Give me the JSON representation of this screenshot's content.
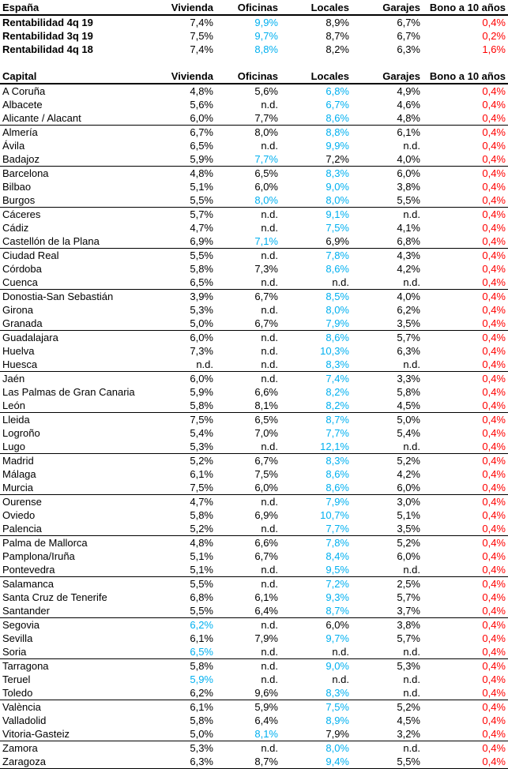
{
  "colors": {
    "highlight": "#00B0F0",
    "negative": "#FF0000",
    "text": "#000000",
    "background": "#FFFFFF",
    "border": "#000000"
  },
  "chart_data": {
    "type": "table",
    "sections": [
      {
        "id": "summary",
        "row_header": "España",
        "columns": [
          "Vivienda",
          "Oficinas",
          "Locales",
          "Garajes",
          "Bono a 10 años"
        ],
        "rows": [
          {
            "label": "Rentabilidad 4q 19",
            "values": [
              "7,4%",
              "9,9%",
              "8,9%",
              "6,7%",
              "0,4%"
            ],
            "hl": [
              1
            ]
          },
          {
            "label": "Rentabilidad 3q 19",
            "values": [
              "7,5%",
              "9,7%",
              "8,7%",
              "6,7%",
              "0,2%"
            ],
            "hl": [
              1
            ]
          },
          {
            "label": "Rentabilidad 4q 18",
            "values": [
              "7,4%",
              "8,8%",
              "8,2%",
              "6,3%",
              "1,6%"
            ],
            "hl": [
              1
            ]
          }
        ]
      },
      {
        "id": "capitals",
        "row_header": "Capital",
        "columns": [
          "Vivienda",
          "Oficinas",
          "Locales",
          "Garajes",
          "Bono a 10 años"
        ],
        "rows": [
          {
            "label": "A Coruña",
            "values": [
              "4,8%",
              "5,6%",
              "6,8%",
              "4,9%",
              "0,4%"
            ],
            "hl": [
              2
            ]
          },
          {
            "label": "Albacete",
            "values": [
              "5,6%",
              "n.d.",
              "6,7%",
              "4,6%",
              "0,4%"
            ],
            "hl": [
              2
            ]
          },
          {
            "label": "Alicante / Alacant",
            "values": [
              "6,0%",
              "7,7%",
              "8,6%",
              "4,8%",
              "0,4%"
            ],
            "hl": [
              2
            ]
          },
          {
            "label": "Almería",
            "values": [
              "6,7%",
              "8,0%",
              "8,8%",
              "6,1%",
              "0,4%"
            ],
            "hl": [
              2
            ]
          },
          {
            "label": "Ávila",
            "values": [
              "6,5%",
              "n.d.",
              "9,9%",
              "n.d.",
              "0,4%"
            ],
            "hl": [
              2
            ]
          },
          {
            "label": "Badajoz",
            "values": [
              "5,9%",
              "7,7%",
              "7,2%",
              "4,0%",
              "0,4%"
            ],
            "hl": [
              1
            ]
          },
          {
            "label": "Barcelona",
            "values": [
              "4,8%",
              "6,5%",
              "8,3%",
              "6,0%",
              "0,4%"
            ],
            "hl": [
              2
            ]
          },
          {
            "label": "Bilbao",
            "values": [
              "5,1%",
              "6,0%",
              "9,0%",
              "3,8%",
              "0,4%"
            ],
            "hl": [
              2
            ]
          },
          {
            "label": "Burgos",
            "values": [
              "5,5%",
              "8,0%",
              "8,0%",
              "5,5%",
              "0,4%"
            ],
            "hl": [
              1,
              2
            ]
          },
          {
            "label": "Cáceres",
            "values": [
              "5,7%",
              "n.d.",
              "9,1%",
              "n.d.",
              "0,4%"
            ],
            "hl": [
              2
            ]
          },
          {
            "label": "Cádiz",
            "values": [
              "4,7%",
              "n.d.",
              "7,5%",
              "4,1%",
              "0,4%"
            ],
            "hl": [
              2
            ]
          },
          {
            "label": "Castellón de la Plana",
            "values": [
              "6,9%",
              "7,1%",
              "6,9%",
              "6,8%",
              "0,4%"
            ],
            "hl": [
              1
            ]
          },
          {
            "label": "Ciudad Real",
            "values": [
              "5,5%",
              "n.d.",
              "7,8%",
              "4,3%",
              "0,4%"
            ],
            "hl": [
              2
            ]
          },
          {
            "label": "Córdoba",
            "values": [
              "5,8%",
              "7,3%",
              "8,6%",
              "4,2%",
              "0,4%"
            ],
            "hl": [
              2
            ]
          },
          {
            "label": "Cuenca",
            "values": [
              "6,5%",
              "n.d.",
              "n.d.",
              "n.d.",
              "0,4%"
            ],
            "hl": []
          },
          {
            "label": "Donostia-San Sebastián",
            "values": [
              "3,9%",
              "6,7%",
              "8,5%",
              "4,0%",
              "0,4%"
            ],
            "hl": [
              2
            ]
          },
          {
            "label": "Girona",
            "values": [
              "5,3%",
              "n.d.",
              "8,0%",
              "6,2%",
              "0,4%"
            ],
            "hl": [
              2
            ]
          },
          {
            "label": "Granada",
            "values": [
              "5,0%",
              "6,7%",
              "7,9%",
              "3,5%",
              "0,4%"
            ],
            "hl": [
              2
            ]
          },
          {
            "label": "Guadalajara",
            "values": [
              "6,0%",
              "n.d.",
              "8,6%",
              "5,7%",
              "0,4%"
            ],
            "hl": [
              2
            ]
          },
          {
            "label": "Huelva",
            "values": [
              "7,3%",
              "n.d.",
              "10,3%",
              "6,3%",
              "0,4%"
            ],
            "hl": [
              2
            ]
          },
          {
            "label": "Huesca",
            "values": [
              "n.d.",
              "n.d.",
              "8,3%",
              "n.d.",
              "0,4%"
            ],
            "hl": [
              2
            ]
          },
          {
            "label": "Jaén",
            "values": [
              "6,0%",
              "n.d.",
              "7,4%",
              "3,3%",
              "0,4%"
            ],
            "hl": [
              2
            ]
          },
          {
            "label": "Las Palmas de Gran Canaria",
            "values": [
              "5,9%",
              "6,6%",
              "8,2%",
              "5,8%",
              "0,4%"
            ],
            "hl": [
              2
            ]
          },
          {
            "label": "León",
            "values": [
              "5,8%",
              "8,1%",
              "8,2%",
              "4,5%",
              "0,4%"
            ],
            "hl": [
              2
            ]
          },
          {
            "label": "Lleida",
            "values": [
              "7,5%",
              "6,5%",
              "8,7%",
              "5,0%",
              "0,4%"
            ],
            "hl": [
              2
            ]
          },
          {
            "label": "Logroño",
            "values": [
              "5,4%",
              "7,0%",
              "7,7%",
              "5,4%",
              "0,4%"
            ],
            "hl": [
              2
            ]
          },
          {
            "label": "Lugo",
            "values": [
              "5,3%",
              "n.d.",
              "12,1%",
              "n.d.",
              "0,4%"
            ],
            "hl": [
              2
            ]
          },
          {
            "label": "Madrid",
            "values": [
              "5,2%",
              "6,7%",
              "8,3%",
              "5,2%",
              "0,4%"
            ],
            "hl": [
              2
            ]
          },
          {
            "label": "Málaga",
            "values": [
              "6,1%",
              "7,5%",
              "8,6%",
              "4,2%",
              "0,4%"
            ],
            "hl": [
              2
            ]
          },
          {
            "label": "Murcia",
            "values": [
              "7,5%",
              "6,0%",
              "8,6%",
              "6,0%",
              "0,4%"
            ],
            "hl": [
              2
            ]
          },
          {
            "label": "Ourense",
            "values": [
              "4,7%",
              "n.d.",
              "7,9%",
              "3,0%",
              "0,4%"
            ],
            "hl": [
              2
            ]
          },
          {
            "label": "Oviedo",
            "values": [
              "5,8%",
              "6,9%",
              "10,7%",
              "5,1%",
              "0,4%"
            ],
            "hl": [
              2
            ]
          },
          {
            "label": "Palencia",
            "values": [
              "5,2%",
              "n.d.",
              "7,7%",
              "3,5%",
              "0,4%"
            ],
            "hl": [
              2
            ]
          },
          {
            "label": "Palma de Mallorca",
            "values": [
              "4,8%",
              "6,6%",
              "7,8%",
              "5,2%",
              "0,4%"
            ],
            "hl": [
              2
            ]
          },
          {
            "label": "Pamplona/Iruña",
            "values": [
              "5,1%",
              "6,7%",
              "8,4%",
              "6,0%",
              "0,4%"
            ],
            "hl": [
              2
            ]
          },
          {
            "label": "Pontevedra",
            "values": [
              "5,1%",
              "n.d.",
              "9,5%",
              "n.d.",
              "0,4%"
            ],
            "hl": [
              2
            ]
          },
          {
            "label": "Salamanca",
            "values": [
              "5,5%",
              "n.d.",
              "7,2%",
              "2,5%",
              "0,4%"
            ],
            "hl": [
              2
            ]
          },
          {
            "label": "Santa Cruz de Tenerife",
            "values": [
              "6,8%",
              "6,1%",
              "9,3%",
              "5,7%",
              "0,4%"
            ],
            "hl": [
              2
            ]
          },
          {
            "label": "Santander",
            "values": [
              "5,5%",
              "6,4%",
              "8,7%",
              "3,7%",
              "0,4%"
            ],
            "hl": [
              2
            ]
          },
          {
            "label": "Segovia",
            "values": [
              "6,2%",
              "n.d.",
              "6,0%",
              "3,8%",
              "0,4%"
            ],
            "hl": [
              0
            ]
          },
          {
            "label": "Sevilla",
            "values": [
              "6,1%",
              "7,9%",
              "9,7%",
              "5,7%",
              "0,4%"
            ],
            "hl": [
              2
            ]
          },
          {
            "label": "Soria",
            "values": [
              "6,5%",
              "n.d.",
              "n.d.",
              "n.d.",
              "0,4%"
            ],
            "hl": [
              0
            ]
          },
          {
            "label": "Tarragona",
            "values": [
              "5,8%",
              "n.d.",
              "9,0%",
              "5,3%",
              "0,4%"
            ],
            "hl": [
              2
            ]
          },
          {
            "label": "Teruel",
            "values": [
              "5,9%",
              "n.d.",
              "n.d.",
              "n.d.",
              "0,4%"
            ],
            "hl": [
              0
            ]
          },
          {
            "label": "Toledo",
            "values": [
              "6,2%",
              "9,6%",
              "8,3%",
              "n.d.",
              "0,4%"
            ],
            "hl": [
              2
            ]
          },
          {
            "label": "València",
            "values": [
              "6,1%",
              "5,9%",
              "7,5%",
              "5,2%",
              "0,4%"
            ],
            "hl": [
              2
            ]
          },
          {
            "label": "Valladolid",
            "values": [
              "5,8%",
              "6,4%",
              "8,9%",
              "4,5%",
              "0,4%"
            ],
            "hl": [
              2
            ]
          },
          {
            "label": "Vitoria-Gasteiz",
            "values": [
              "5,0%",
              "8,1%",
              "7,9%",
              "3,2%",
              "0,4%"
            ],
            "hl": [
              1
            ]
          },
          {
            "label": "Zamora",
            "values": [
              "5,3%",
              "n.d.",
              "8,0%",
              "n.d.",
              "0,4%"
            ],
            "hl": [
              2
            ]
          },
          {
            "label": "Zaragoza",
            "values": [
              "6,3%",
              "8,7%",
              "9,4%",
              "5,5%",
              "0,4%"
            ],
            "hl": [
              2
            ]
          }
        ]
      }
    ]
  }
}
